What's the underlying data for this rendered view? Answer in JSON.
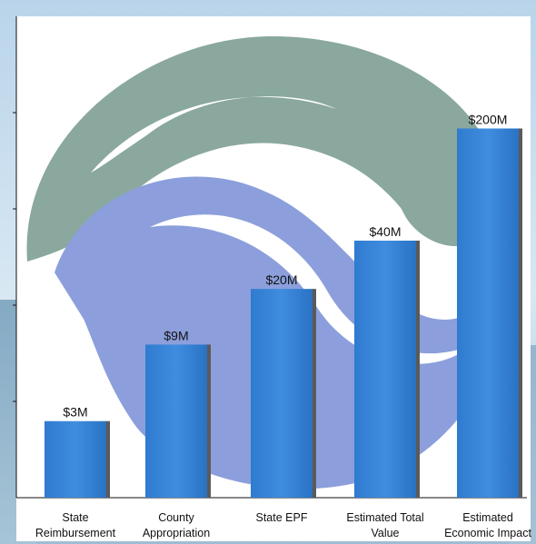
{
  "chart_data": {
    "type": "bar",
    "title": "",
    "xlabel": "",
    "ylabel": "",
    "categories": [
      [
        "State",
        "Reimbursement"
      ],
      [
        "County",
        "Appropriation"
      ],
      [
        "State EPF"
      ],
      [
        "Estimated Total",
        "Value"
      ],
      [
        "Estimated",
        "Economic Impact"
      ]
    ],
    "values": [
      3,
      9,
      20,
      40,
      200
    ],
    "value_labels": [
      "$3M",
      "$9M",
      "$20M",
      "$40M",
      "$200M"
    ],
    "unit": "$M",
    "axis_scale": "log",
    "ylim": [
      1,
      1000
    ],
    "grid": false,
    "colors": {
      "bar": "#3b86d6",
      "bar_shadow": "#5a5a5a",
      "gray_shape": "#8aa89d",
      "blue_shape": "#8c9fdc",
      "sky": "#c7ddee",
      "water": "#7fa7c2"
    }
  }
}
